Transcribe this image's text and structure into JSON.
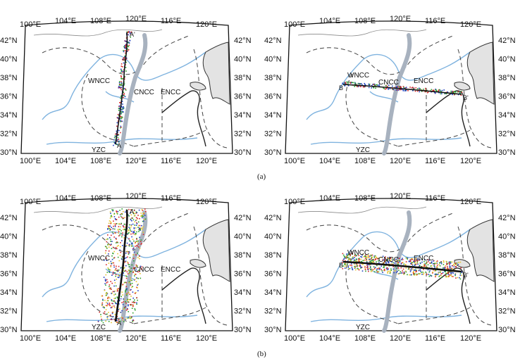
{
  "lon_labels": [
    "100°E",
    "104°E",
    "108°E",
    "116°E",
    "120°E"
  ],
  "lon_labels_center": "120°E",
  "lat_labels": [
    "30°N",
    "32°N",
    "34°N",
    "36°N",
    "38°N",
    "40°N",
    "42°N"
  ],
  "regions": {
    "west": "WNCC",
    "central": "CNCC",
    "east": "ENCC",
    "south": "YZC"
  },
  "profile_points": {
    "a_start": "A",
    "a_end": "A'",
    "b_start": "B",
    "b_end": "B'"
  },
  "captions": {
    "top": "(a)",
    "bottom": "(b)"
  },
  "colors": {
    "rivers": "#7fb3df",
    "suture_zone": "#a8b2bf",
    "land_shading": "#e3e3e3",
    "ray_colors": [
      "#1f3fbf",
      "#d62728",
      "#2ca02c",
      "#e6c229",
      "#7a2c9e",
      "#111111"
    ]
  },
  "panels": [
    {
      "name": "panel-a-left",
      "profile": "A-A'"
    },
    {
      "name": "panel-a-right",
      "profile": "B-B'"
    },
    {
      "name": "panel-b-left",
      "profile": "A-A'"
    },
    {
      "name": "panel-b-right",
      "profile": "B-B'"
    }
  ]
}
